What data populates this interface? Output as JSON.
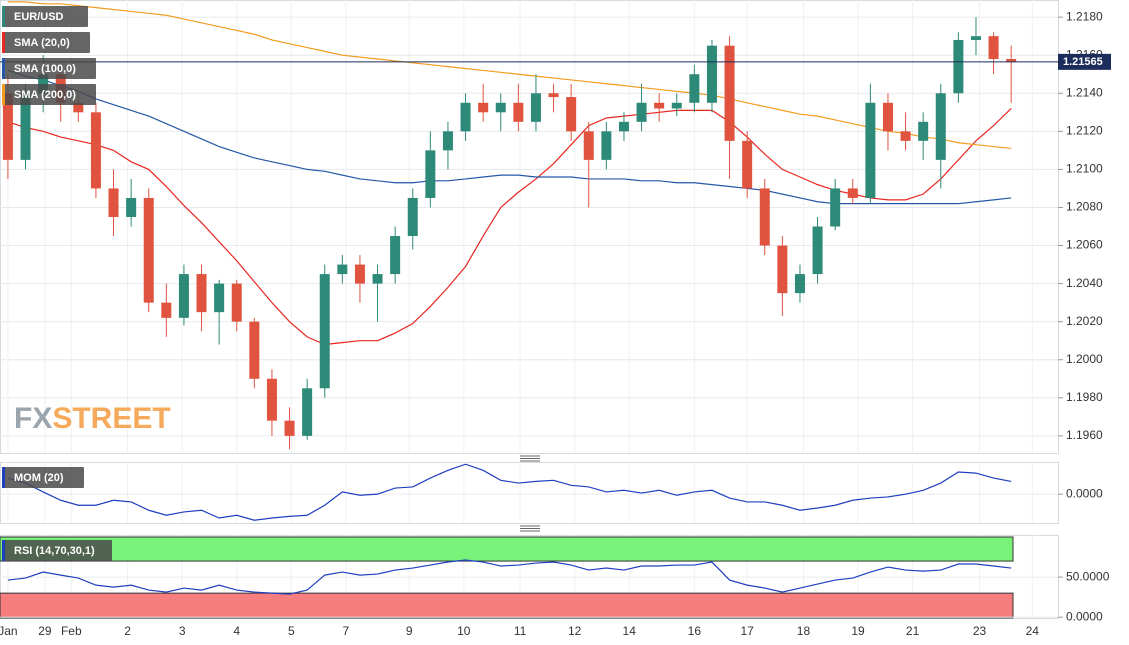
{
  "watermark": [
    "FX",
    "STREET"
  ],
  "chart_data": [
    {
      "type": "candlestick",
      "name": "EUR/USD",
      "up_color": "#2e8a78",
      "down_color": "#e0533f",
      "open": [
        1.214,
        1.2105,
        1.214,
        1.215,
        1.2135,
        1.213,
        1.209,
        1.2075,
        1.2085,
        1.203,
        1.2022,
        1.2045,
        1.2025,
        1.204,
        1.202,
        1.199,
        1.1968,
        1.196,
        1.1985,
        1.2045,
        1.205,
        1.204,
        1.2045,
        1.2065,
        1.2085,
        1.211,
        1.212,
        1.2135,
        1.213,
        1.2135,
        1.2125,
        1.214,
        1.2138,
        1.212,
        1.2105,
        1.212,
        1.2125,
        1.2135,
        1.2132,
        1.2135,
        1.2135,
        1.2165,
        1.2115,
        1.209,
        1.206,
        1.2035,
        1.2045,
        1.207,
        1.209,
        1.2085,
        1.2135,
        1.212,
        1.2115,
        1.2105,
        1.214,
        1.2168,
        1.217,
        1.2158
      ],
      "high": [
        1.215,
        1.2145,
        1.216,
        1.2155,
        1.214,
        1.2135,
        1.21,
        1.2095,
        1.209,
        1.204,
        1.205,
        1.205,
        1.2042,
        1.2042,
        1.2022,
        1.1995,
        1.1975,
        1.199,
        1.205,
        1.2055,
        1.2055,
        1.205,
        1.207,
        1.209,
        1.212,
        1.2125,
        1.214,
        1.2145,
        1.214,
        1.2145,
        1.215,
        1.2145,
        1.2145,
        1.2125,
        1.2125,
        1.213,
        1.2145,
        1.214,
        1.214,
        1.2155,
        1.2168,
        1.217,
        1.212,
        1.2095,
        1.2065,
        1.205,
        1.2075,
        1.2095,
        1.2095,
        1.2145,
        1.214,
        1.213,
        1.213,
        1.2145,
        1.2172,
        1.218,
        1.2172,
        1.2165
      ],
      "low": [
        1.2095,
        1.21,
        1.213,
        1.2125,
        1.2125,
        1.2085,
        1.2065,
        1.207,
        1.2025,
        1.2012,
        1.2018,
        1.2015,
        1.2008,
        1.2015,
        1.1985,
        1.196,
        1.1953,
        1.1958,
        1.198,
        1.204,
        1.203,
        1.202,
        1.204,
        1.2058,
        1.208,
        1.21,
        1.2115,
        1.2125,
        1.212,
        1.212,
        1.212,
        1.213,
        1.2115,
        1.208,
        1.21,
        1.2115,
        1.212,
        1.2125,
        1.2128,
        1.213,
        1.213,
        1.2095,
        1.2085,
        1.2055,
        1.2023,
        1.203,
        1.204,
        1.2068,
        1.2082,
        1.2082,
        1.211,
        1.211,
        1.2105,
        1.209,
        1.2135,
        1.216,
        1.215,
        1.2135
      ],
      "close": [
        1.2105,
        1.214,
        1.215,
        1.2135,
        1.213,
        1.209,
        1.2075,
        1.2085,
        1.203,
        1.2022,
        1.2045,
        1.2025,
        1.204,
        1.202,
        1.199,
        1.1968,
        1.196,
        1.1985,
        1.2045,
        1.205,
        1.204,
        1.2045,
        1.2065,
        1.2085,
        1.211,
        1.212,
        1.2135,
        1.213,
        1.2135,
        1.2125,
        1.214,
        1.2138,
        1.212,
        1.2105,
        1.212,
        1.2125,
        1.2135,
        1.2132,
        1.2135,
        1.215,
        1.2165,
        1.2115,
        1.209,
        1.206,
        1.2035,
        1.2045,
        1.207,
        1.209,
        1.2085,
        1.2135,
        1.212,
        1.2115,
        1.2125,
        1.214,
        1.2168,
        1.217,
        1.2158,
        1.21565
      ],
      "overlays": [
        {
          "name": "SMA (20,0)",
          "color": "#e8251f",
          "values": [
            1.2125,
            1.2122,
            1.212,
            1.2117,
            1.2115,
            1.2113,
            1.211,
            1.2104,
            1.21,
            1.2091,
            1.2081,
            1.2072,
            1.2062,
            1.2052,
            1.2041,
            1.203,
            1.202,
            1.2012,
            1.2008,
            1.2009,
            1.201,
            1.201,
            1.2014,
            1.2019,
            1.2028,
            1.2038,
            1.2049,
            1.2065,
            1.208,
            1.2088,
            1.2095,
            1.2103,
            1.2113,
            1.2123,
            1.2127,
            1.2128,
            1.2129,
            1.213,
            1.2131,
            1.2131,
            1.2131,
            1.2125,
            1.2117,
            1.2108,
            1.21,
            1.2096,
            1.2092,
            1.2089,
            1.2087,
            1.2085,
            1.2084,
            1.2084,
            1.2087,
            1.2095,
            1.2105,
            1.2115,
            1.2123,
            1.2132
          ]
        },
        {
          "name": "SMA (100,0)",
          "color": "#2557a7",
          "values": [
            1.2152,
            1.2149,
            1.2147,
            1.2144,
            1.2141,
            1.2137,
            1.2134,
            1.2131,
            1.2128,
            1.2124,
            1.212,
            1.2116,
            1.2112,
            1.2109,
            1.2106,
            1.2104,
            1.2102,
            1.21,
            1.2099,
            1.2097,
            1.2095,
            1.2094,
            1.2093,
            1.2093,
            1.2094,
            1.2094,
            1.2095,
            1.2096,
            1.2097,
            1.2097,
            1.2096,
            1.2096,
            1.2096,
            1.2095,
            1.2095,
            1.2095,
            1.2094,
            1.2094,
            1.2093,
            1.2093,
            1.2092,
            1.2091,
            1.209,
            1.2089,
            1.2087,
            1.2085,
            1.2083,
            1.2082,
            1.2082,
            1.2082,
            1.2082,
            1.2082,
            1.2082,
            1.2082,
            1.2082,
            1.2083,
            1.2084,
            1.2085
          ]
        },
        {
          "name": "SMA (200,0)",
          "color": "#f39c1f",
          "values": [
            1.2188,
            1.2188,
            1.2187,
            1.2187,
            1.2186,
            1.2185,
            1.2184,
            1.2183,
            1.2182,
            1.2181,
            1.2179,
            1.2177,
            1.2175,
            1.2173,
            1.2171,
            1.2168,
            1.2166,
            1.2164,
            1.2162,
            1.216,
            1.2159,
            1.2158,
            1.2157,
            1.2156,
            1.2155,
            1.2154,
            1.2153,
            1.2152,
            1.2151,
            1.215,
            1.2149,
            1.2148,
            1.2147,
            1.2146,
            1.2145,
            1.2144,
            1.2143,
            1.2142,
            1.2141,
            1.214,
            1.2139,
            1.2137,
            1.2135,
            1.2133,
            1.2131,
            1.2129,
            1.2128,
            1.2126,
            1.2124,
            1.2122,
            1.212,
            1.2119,
            1.2117,
            1.2116,
            1.2114,
            1.2113,
            1.2112,
            1.2111
          ]
        }
      ],
      "last_price": 1.21565,
      "last_price_color": "#1c2c5b",
      "ylim": [
        1.1951,
        1.2189
      ],
      "yticks": [
        {
          "value": 1.218,
          "label": "1.2180"
        },
        {
          "value": 1.216,
          "label": "1.2160"
        },
        {
          "value": 1.214,
          "label": "1.2140"
        },
        {
          "value": 1.212,
          "label": "1.2120"
        },
        {
          "value": 1.21,
          "label": "1.2100"
        },
        {
          "value": 1.208,
          "label": "1.2080"
        },
        {
          "value": 1.206,
          "label": "1.2060"
        },
        {
          "value": 1.204,
          "label": "1.2040"
        },
        {
          "value": 1.202,
          "label": "1.2020"
        },
        {
          "value": 1.2,
          "label": "1.2000"
        },
        {
          "value": 1.198,
          "label": "1.1980"
        },
        {
          "value": 1.196,
          "label": "1.1960"
        }
      ],
      "xlim": [
        -0.45,
        59.66
      ],
      "xticks": [
        {
          "value": 0,
          "label": "Jan"
        },
        {
          "value": 2.1,
          "label": "29"
        },
        {
          "value": 3.6,
          "label": "Feb"
        },
        {
          "value": 6.8,
          "label": "2"
        },
        {
          "value": 9.9,
          "label": "3"
        },
        {
          "value": 13,
          "label": "4"
        },
        {
          "value": 16.1,
          "label": "5"
        },
        {
          "value": 19.2,
          "label": "7"
        },
        {
          "value": 22.8,
          "label": "9"
        },
        {
          "value": 25.9,
          "label": "10"
        },
        {
          "value": 29.1,
          "label": "11"
        },
        {
          "value": 32.2,
          "label": "12"
        },
        {
          "value": 35.3,
          "label": "14"
        },
        {
          "value": 39,
          "label": "16"
        },
        {
          "value": 42,
          "label": "17"
        },
        {
          "value": 45.2,
          "label": "18"
        },
        {
          "value": 48.3,
          "label": "19"
        },
        {
          "value": 51.4,
          "label": "21"
        },
        {
          "value": 55.2,
          "label": "23"
        },
        {
          "value": 58.2,
          "label": "24"
        }
      ],
      "grid": true
    },
    {
      "type": "line",
      "series": [
        {
          "name": "MOM (20)",
          "color": "#1f3fbf",
          "values": [
            0.0029,
            0.002,
            0.0004,
            -0.0011,
            -0.002,
            -0.002,
            -0.0011,
            -0.0014,
            -0.0029,
            -0.0038,
            -0.0032,
            -0.0029,
            -0.0043,
            -0.0038,
            -0.0047,
            -0.0043,
            -0.004,
            -0.0038,
            -0.002,
            0.0004,
            -0.0002,
            0,
            0.0011,
            0.0013,
            0.0029,
            0.0043,
            0.0054,
            0.0043,
            0.0025,
            0.002,
            0.0023,
            0.0025,
            0.0016,
            0.0013,
            0.0004,
            0.0007,
            0.0002,
            0.0007,
            -0.0002,
            0.0004,
            0.0007,
            -0.0007,
            -0.0014,
            -0.0014,
            -0.002,
            -0.0029,
            -0.0025,
            -0.002,
            -0.0011,
            -0.0007,
            -0.0005,
            0,
            0.0007,
            0.002,
            0.004,
            0.0038,
            0.0029,
            0.0023
          ]
        }
      ],
      "ylim": [
        -0.0052,
        0.0058
      ],
      "yticks": [
        {
          "value": 0,
          "label": "0.0000"
        }
      ]
    },
    {
      "type": "line",
      "series": [
        {
          "name": "RSI (14,70,30,1)",
          "color": "#1f3fbf",
          "values": [
            46.3,
            48.8,
            56.3,
            52.5,
            48.8,
            40,
            37.5,
            40,
            33.8,
            31.3,
            36.3,
            33.8,
            40,
            33.8,
            31.3,
            30,
            28.8,
            33.8,
            52.5,
            56.3,
            52.5,
            53.8,
            58.8,
            61.3,
            65,
            68.8,
            71.3,
            68.8,
            63.8,
            65,
            67.5,
            68.8,
            65,
            58.8,
            61.3,
            58.8,
            63.8,
            63.8,
            65,
            65,
            68.8,
            46.3,
            40,
            36.3,
            31.3,
            36.3,
            41.3,
            46.3,
            48.8,
            56.3,
            62.5,
            58.8,
            57.5,
            58.8,
            66.3,
            66.3,
            63.8,
            61.3
          ]
        }
      ],
      "overbought": 70,
      "overbought_color": "#79f279",
      "oversold": 30,
      "oversold_color": "#f77e7e",
      "ylim": [
        -1,
        102.5
      ],
      "yticks": [
        {
          "value": 50,
          "label": "50.0000"
        },
        {
          "value": 0,
          "label": "0.0000"
        }
      ]
    }
  ]
}
